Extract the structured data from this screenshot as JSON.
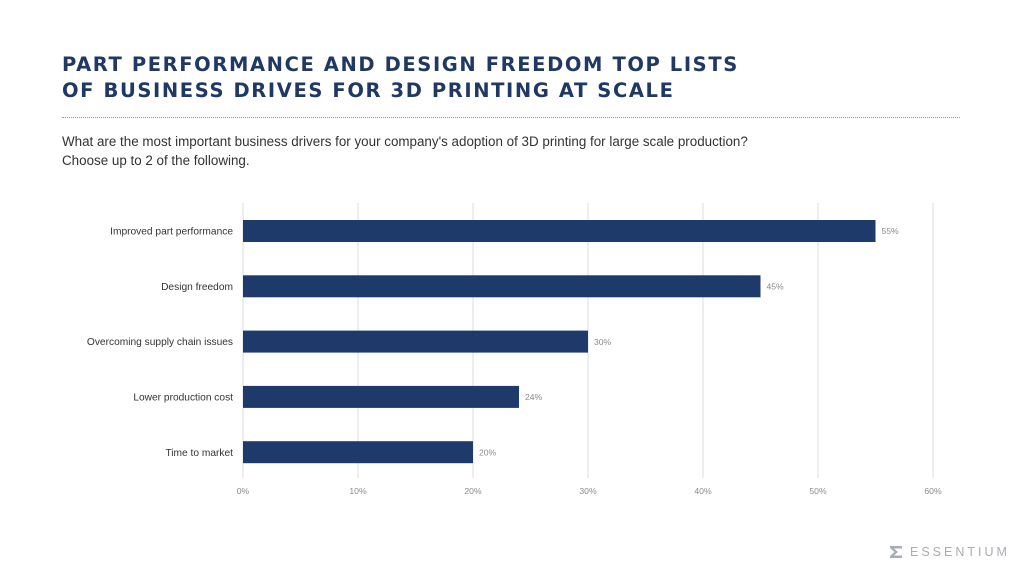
{
  "header": {
    "title_lines": [
      "PART PERFORMANCE AND DESIGN FREEDOM TOP LISTS",
      "OF BUSINESS DRIVES FOR 3D PRINTING AT SCALE"
    ],
    "subtitle_lines": [
      "What are the most important business drivers for your company's adoption of 3D printing for large scale production?",
      "Choose up to 2 of the following."
    ]
  },
  "colors": {
    "title": "#1f3864",
    "bar": "#1e3a6a",
    "grid": "#dcdcdc"
  },
  "chart_data": {
    "type": "bar",
    "orientation": "horizontal",
    "title": "PART PERFORMANCE AND DESIGN FREEDOM TOP LISTS OF BUSINESS DRIVES FOR 3D PRINTING AT SCALE",
    "subtitle": "What are the most important business drivers for your company's adoption of 3D printing for large scale production? Choose up to 2 of the following.",
    "categories": [
      "Improved part performance",
      "Design freedom",
      "Overcoming supply chain issues",
      "Lower production cost",
      "Time to market"
    ],
    "values": [
      55,
      45,
      30,
      24,
      20
    ],
    "value_labels": [
      "55%",
      "45%",
      "30%",
      "24%",
      "20%"
    ],
    "xlabel": "",
    "ylabel": "",
    "xlim": [
      0,
      60
    ],
    "xticks": [
      0,
      10,
      20,
      30,
      40,
      50,
      60
    ],
    "xtick_labels": [
      "0%",
      "10%",
      "20%",
      "30%",
      "40%",
      "50%",
      "60%"
    ],
    "grid": "vertical",
    "legend": "none"
  },
  "brand": {
    "logo_icon": "sigma-icon",
    "logo_text": "ESSENTIUM"
  }
}
